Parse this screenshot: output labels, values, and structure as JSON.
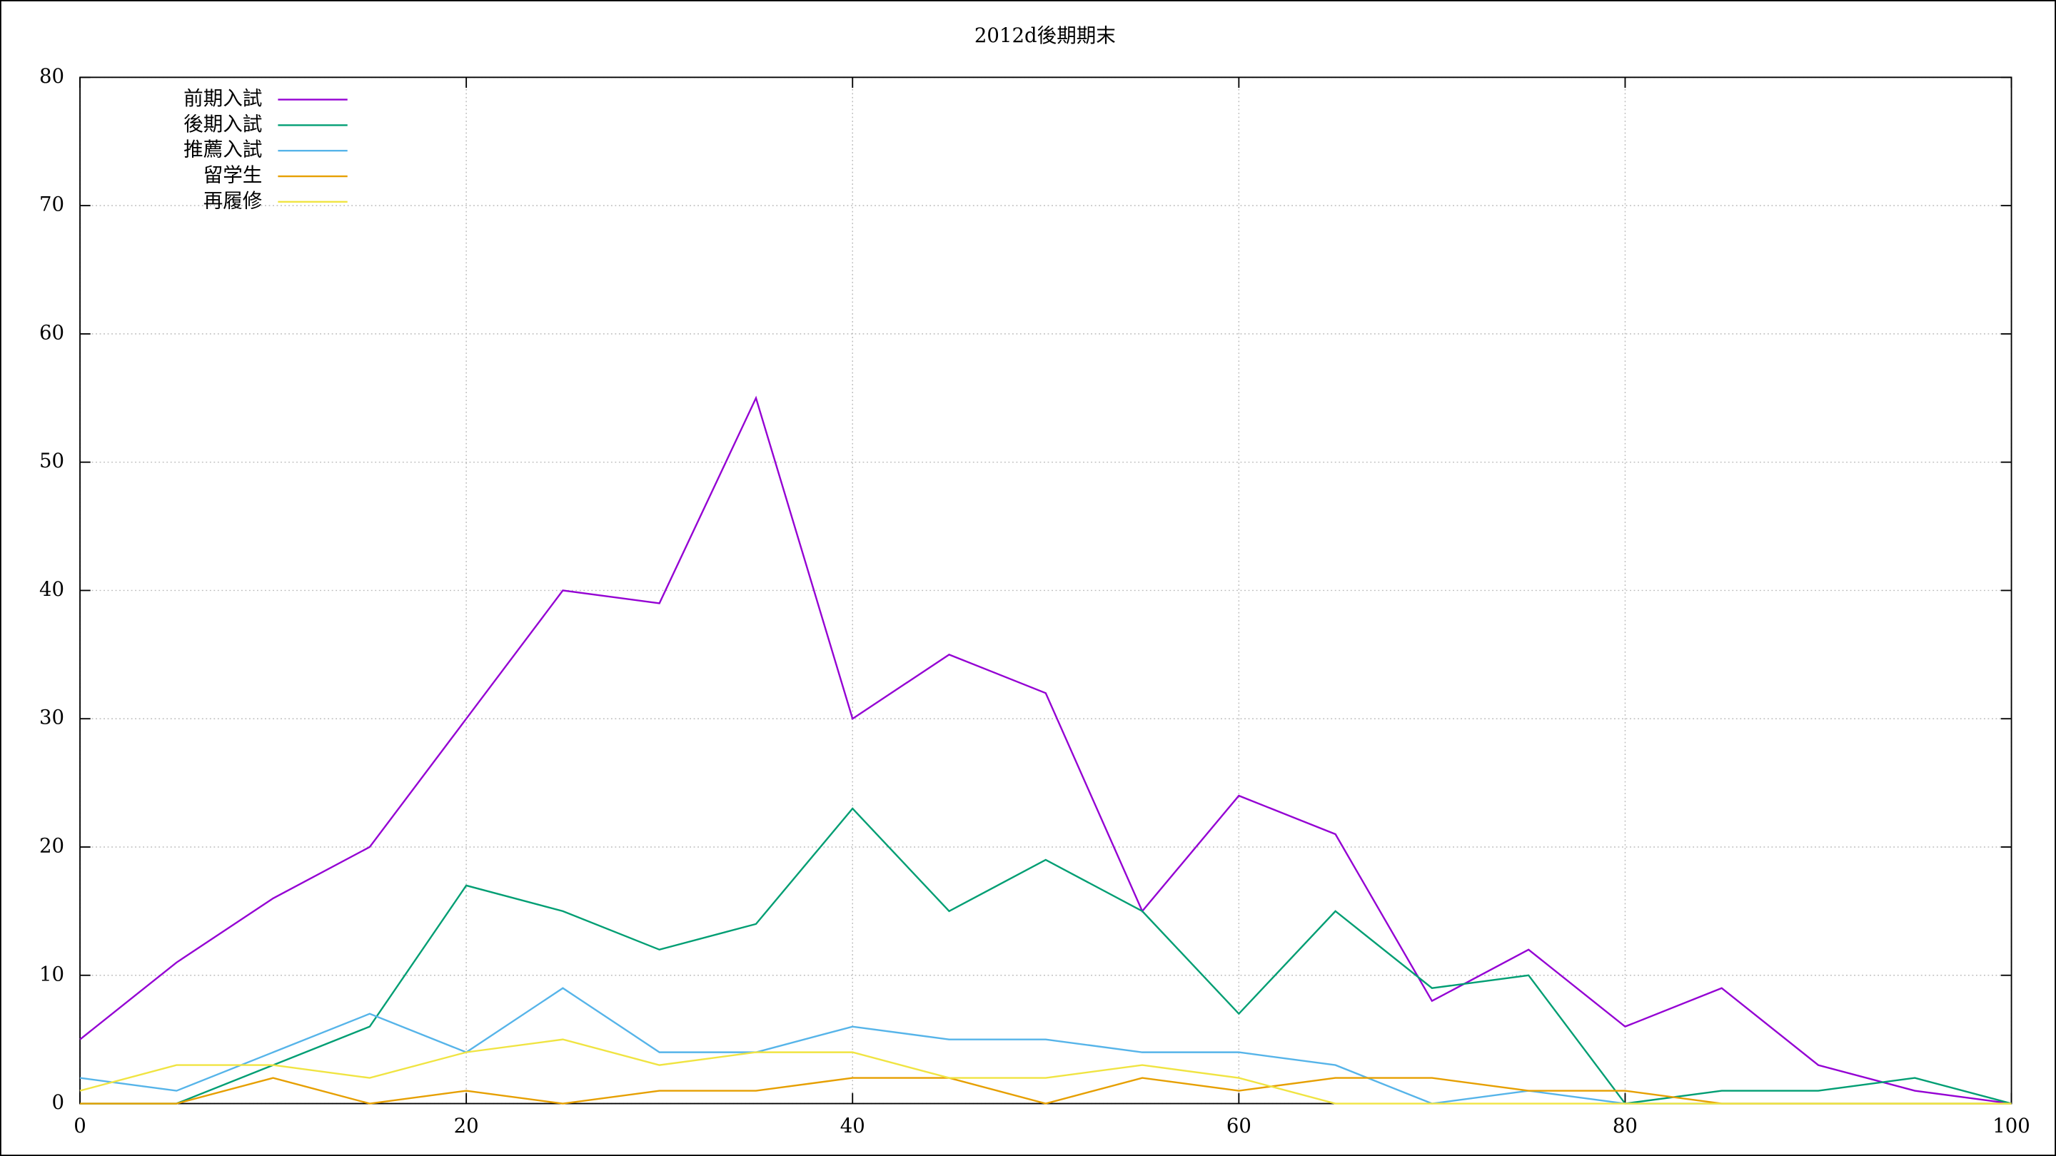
{
  "chart_data": {
    "type": "line",
    "title": "2012d後期期末",
    "x": [
      0,
      5,
      10,
      15,
      20,
      25,
      30,
      35,
      40,
      45,
      50,
      55,
      60,
      65,
      70,
      75,
      80,
      85,
      90,
      95,
      100
    ],
    "series": [
      {
        "name": "前期入試",
        "color": "#9400d3",
        "values": [
          5,
          11,
          16,
          20,
          30,
          40,
          39,
          55,
          30,
          35,
          32,
          15,
          24,
          21,
          8,
          12,
          6,
          9,
          3,
          1,
          0
        ]
      },
      {
        "name": "後期入試",
        "color": "#009e73",
        "values": [
          0,
          0,
          3,
          6,
          17,
          15,
          12,
          14,
          23,
          15,
          19,
          15,
          7,
          15,
          9,
          10,
          0,
          1,
          1,
          2,
          0
        ]
      },
      {
        "name": "推薦入試",
        "color": "#56b4e9",
        "values": [
          2,
          1,
          4,
          7,
          4,
          9,
          4,
          4,
          6,
          5,
          5,
          4,
          4,
          3,
          0,
          1,
          0,
          0,
          0,
          0,
          0
        ]
      },
      {
        "name": "留学生",
        "color": "#e69f00",
        "values": [
          0,
          0,
          2,
          0,
          1,
          0,
          1,
          1,
          2,
          2,
          0,
          2,
          1,
          2,
          2,
          1,
          1,
          0,
          0,
          0,
          0
        ]
      },
      {
        "name": "再履修",
        "color": "#f0e442",
        "values": [
          1,
          3,
          3,
          2,
          4,
          5,
          3,
          4,
          4,
          2,
          2,
          3,
          2,
          0,
          0,
          0,
          0,
          0,
          0,
          0,
          0
        ]
      }
    ],
    "xlim": [
      0,
      100
    ],
    "xticks": [
      0,
      20,
      40,
      60,
      80,
      100
    ],
    "ylim": [
      0,
      80
    ],
    "yticks": [
      0,
      10,
      20,
      30,
      40,
      50,
      60,
      70,
      80
    ],
    "grid": true,
    "legend": "top-left"
  }
}
